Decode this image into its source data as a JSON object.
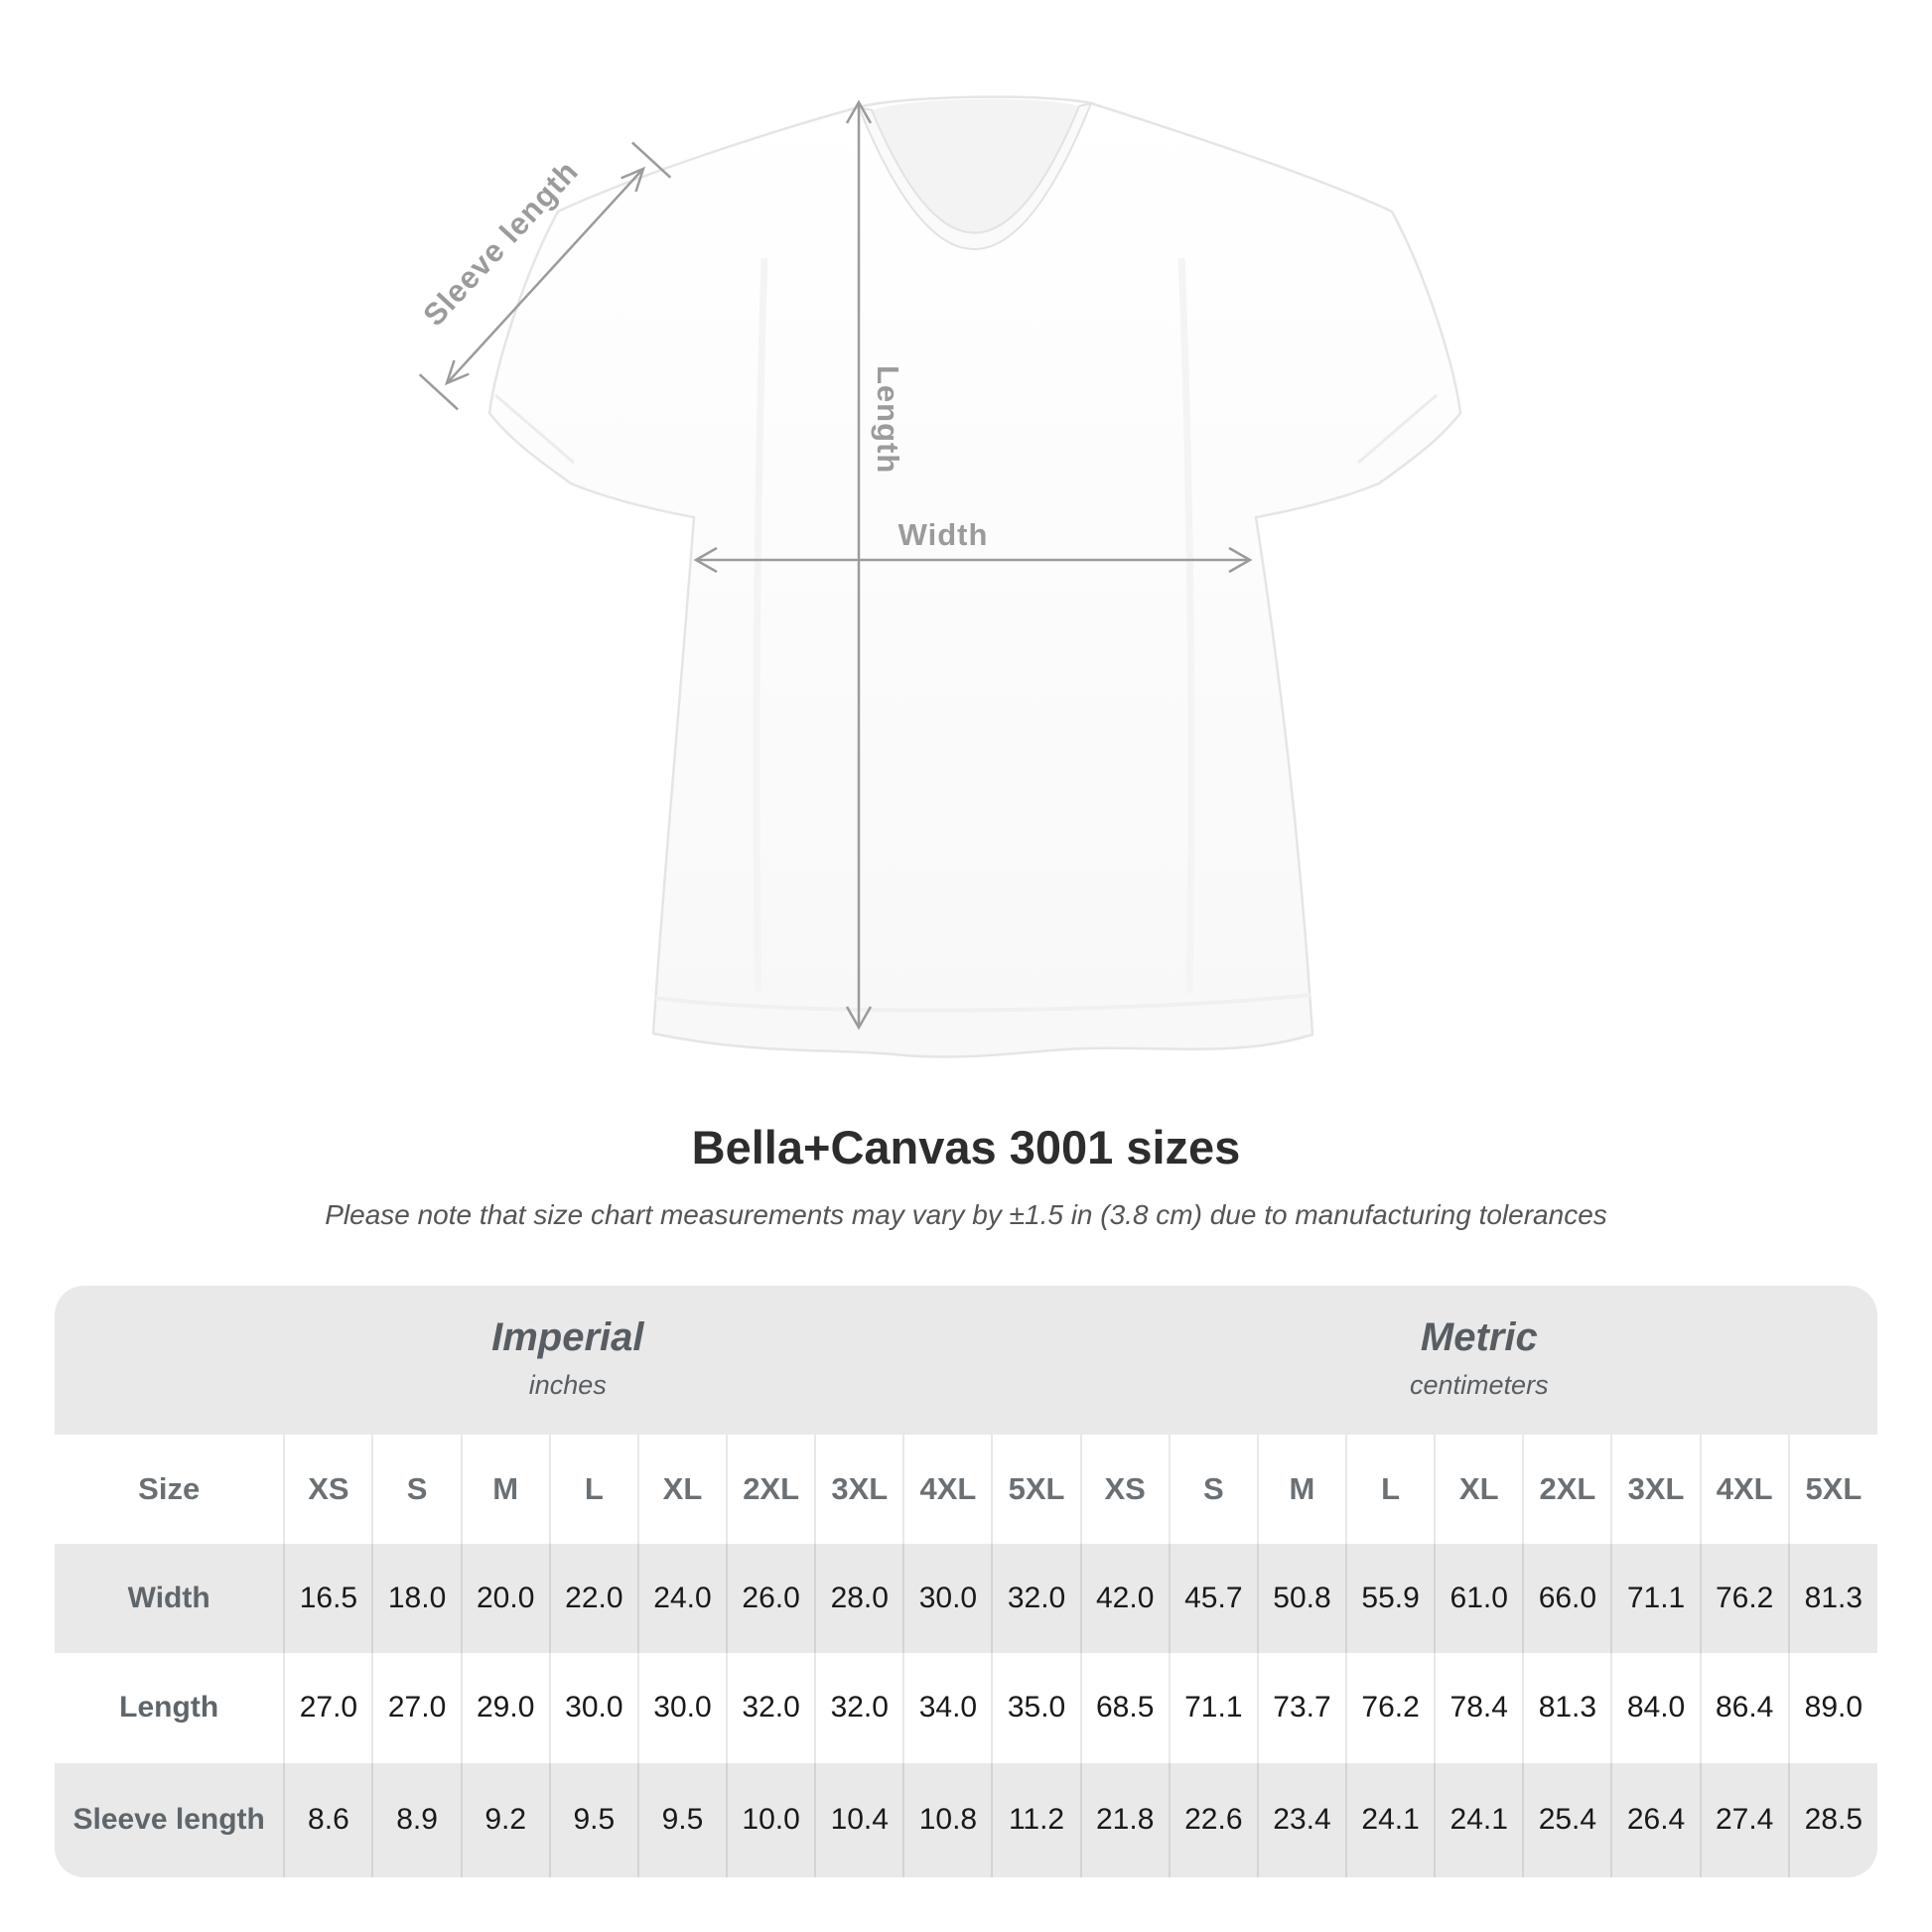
{
  "title": "Bella+Canvas 3001 sizes",
  "subtitle": "Please note that size chart measurements may vary by ±1.5 in (3.8 cm) due to manufacturing tolerances",
  "diagram": {
    "sleeve_length_label": "Sleeve length",
    "length_label": "Length",
    "width_label": "Width"
  },
  "table": {
    "size_column_header": "Size",
    "groups": [
      {
        "name": "Imperial",
        "unit": "inches"
      },
      {
        "name": "Metric",
        "unit": "centimeters"
      }
    ],
    "sizes": [
      "XS",
      "S",
      "M",
      "L",
      "XL",
      "2XL",
      "3XL",
      "4XL",
      "5XL"
    ],
    "rows": [
      {
        "label": "Width",
        "imperial": [
          "16.5",
          "18.0",
          "20.0",
          "22.0",
          "24.0",
          "26.0",
          "28.0",
          "30.0",
          "32.0"
        ],
        "metric": [
          "42.0",
          "45.7",
          "50.8",
          "55.9",
          "61.0",
          "66.0",
          "71.1",
          "76.2",
          "81.3"
        ]
      },
      {
        "label": "Length",
        "imperial": [
          "27.0",
          "27.0",
          "29.0",
          "30.0",
          "30.0",
          "32.0",
          "32.0",
          "34.0",
          "35.0"
        ],
        "metric": [
          "68.5",
          "71.1",
          "73.7",
          "76.2",
          "78.4",
          "81.3",
          "84.0",
          "86.4",
          "89.0"
        ]
      },
      {
        "label": "Sleeve length",
        "imperial": [
          "8.6",
          "8.9",
          "9.2",
          "9.5",
          "9.5",
          "10.0",
          "10.4",
          "10.8",
          "11.2"
        ],
        "metric": [
          "21.8",
          "22.6",
          "23.4",
          "24.1",
          "24.1",
          "25.4",
          "26.4",
          "27.4",
          "28.5"
        ]
      }
    ]
  },
  "chart_data": {
    "type": "table",
    "title": "Bella+Canvas 3001 sizes",
    "categories": [
      "XS",
      "S",
      "M",
      "L",
      "XL",
      "2XL",
      "3XL",
      "4XL",
      "5XL"
    ],
    "units": {
      "imperial": "inches",
      "metric": "centimeters"
    },
    "series": [
      {
        "name": "Width (inches)",
        "values": [
          16.5,
          18.0,
          20.0,
          22.0,
          24.0,
          26.0,
          28.0,
          30.0,
          32.0
        ]
      },
      {
        "name": "Length (inches)",
        "values": [
          27.0,
          27.0,
          29.0,
          30.0,
          30.0,
          32.0,
          32.0,
          34.0,
          35.0
        ]
      },
      {
        "name": "Sleeve length (inches)",
        "values": [
          8.6,
          8.9,
          9.2,
          9.5,
          9.5,
          10.0,
          10.4,
          10.8,
          11.2
        ]
      },
      {
        "name": "Width (centimeters)",
        "values": [
          42.0,
          45.7,
          50.8,
          55.9,
          61.0,
          66.0,
          71.1,
          76.2,
          81.3
        ]
      },
      {
        "name": "Length (centimeters)",
        "values": [
          68.5,
          71.1,
          73.7,
          76.2,
          78.4,
          81.3,
          84.0,
          86.4,
          89.0
        ]
      },
      {
        "name": "Sleeve length (centimeters)",
        "values": [
          21.8,
          22.6,
          23.4,
          24.1,
          24.1,
          25.4,
          26.4,
          27.4,
          28.5
        ]
      }
    ]
  },
  "colors": {
    "annotation_gray": "#9b9b9b",
    "title_text": "#2d2d2d",
    "subtitle_text": "#555555",
    "table_background": "#e9e9e9",
    "value_text": "#191919",
    "header_text": "#6a7074",
    "shirt_outline": "#e5e5e5"
  }
}
